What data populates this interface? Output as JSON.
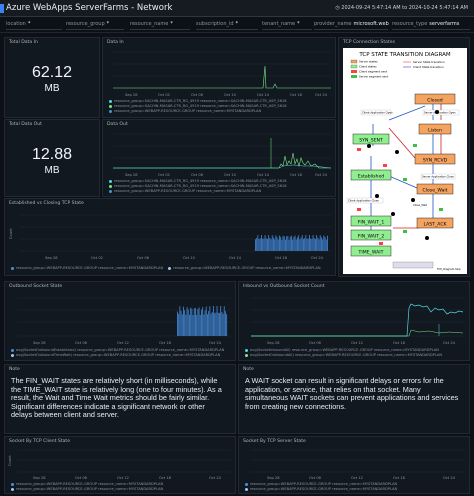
{
  "app": {
    "title": "Azure WebApps ServerFarms - Network",
    "timerange": "2024-09-24 5:47:14 AM to 2024-10-24 5:47:14 AM"
  },
  "filters": [
    {
      "label": "location",
      "value": "*"
    },
    {
      "label": "resource_group",
      "value": "*"
    },
    {
      "label": "resource_name",
      "value": "*"
    },
    {
      "label": "subscription_id",
      "value": "*"
    },
    {
      "label": "tenant_name",
      "value": "*"
    },
    {
      "label": "provider_name",
      "value": "microsoft.web"
    },
    {
      "label": "resource_type",
      "value": "serverfarms"
    }
  ],
  "panels": {
    "total_data_in": {
      "title": "Total Data In",
      "value": "62.12",
      "unit": "MB"
    },
    "data_in": {
      "title": "Data In",
      "legend": [
        "resource_group=SACHIN-MASAR-CTR_RG_4919 resource_name=SACHIN-MASAR-CTR_ASP_5616",
        "resource_group=SACHIN-MASAR-CTR_RG_4919 resource_name=SACHIN-MASAR-CTR_ASP_5616",
        "resource_group=WEBAPP-RESOURCE-GROUP resource_name=MYSTANDARDPLAN"
      ]
    },
    "total_data_out": {
      "title": "Total Data Out",
      "value": "12.88",
      "unit": "MB"
    },
    "data_out": {
      "title": "Data Out",
      "legend": [
        "resource_group=SACHIN-MASAR-CTR_RG_4919 resource_name=SACHIN-MASAR-CTR_ASP_5616",
        "resource_group=SACHIN-MASAR-CTR_RG_4919 resource_name=SACHIN-MASAR-CTR_ASP_5616",
        "resource_group=WEBAPP-RESOURCE-GROUP resource_name=MYSTANDARDPLAN"
      ]
    },
    "tcp_connection_states": {
      "title": "TCP Connection States"
    },
    "established_vs_closing": {
      "title": "Established vs Closing TCP State",
      "ylabel": "Count",
      "legend": [
        "resource_group=WEBAPP-RESOURCE-GROUP resource_name=MYSTANDARDPLAN",
        "resource_group=WEBAPP-RESOURCE-GROUP resource_name=MYSTANDARDPLAN"
      ]
    },
    "outbound_socket_state": {
      "title": "Outbound Socket State",
      "legend": [
        "avg(SocketOutboundEstablished) resource_group=WEBAPP-RESOURCE-GROUP resource_name=MYSTANDARDPLAN",
        "avg(SocketOutboundTimeWait) resource_group=WEBAPP-RESOURCE-GROUP resource_name=MYSTANDARDPLAN"
      ]
    },
    "inbound_vs_outbound": {
      "title": "Inbound vs Outbound Socket Count",
      "legend": [
        "avg(SocketInboundAll) resource_group=WEBAPP-RESOURCE-GROUP resource_name=MYSTANDARDPLAN",
        "avg(SocketOutboundAll) resource_group=WEBAPP-RESOURCE-GROUP resource_name=MYSTANDARDPLAN"
      ]
    },
    "note_left": {
      "title": "Note",
      "text": "The FIN_WAIT states are relatively short (in milliseconds), while the TIME_WAIT state is relatively long (one to four minutes). As a result, the Wait and Time Wait metrics should be fairly similar. Significant differences indicate a significant network or other delays between client and server."
    },
    "note_right": {
      "title": "Note",
      "text": "A WAIT socket can result in significant delays or errors for the application, or service, that relies on that socket. Many simultaneous WAIT sockets can prevent applications and services from creating new connections."
    },
    "socket_by_client": {
      "title": "Socket By TCP Client State",
      "ylabel": "Count",
      "legend": [
        "resource_group=WEBAPP-RESOURCE-GROUP resource_name=MYSTANDARDPLAN",
        "resource_group=WEBAPP-RESOURCE-GROUP resource_name=MYSTANDARDPLAN"
      ]
    },
    "socket_by_server": {
      "title": "Socket By TCP Server State",
      "legend": [
        "resource_group=WEBAPP-RESOURCE-GROUP resource_name=MYSTANDARDPLAN",
        "resource_group=WEBAPP-RESOURCE-GROUP resource_name=MYSTANDARDPLAN"
      ]
    }
  },
  "diagram": {
    "title": "TCP STATE TRANSITION DIAGRAM",
    "legend": [
      "Server states",
      "Client states",
      "Client segment sent",
      "Server segment sent",
      "Server State transition",
      "Client State transition"
    ],
    "states": [
      "Closed",
      "Listen",
      "SYN_SENT",
      "SYN_RCVD",
      "Established",
      "Close_Wait",
      "FIN_WAIT_1",
      "LAST_ACK",
      "FIN_WAIT_2",
      "TIME_WAIT"
    ],
    "labels": [
      "Client Application Open",
      "Server Application Open",
      "Client Application Close",
      "Server Application Close",
      "Close_Wait"
    ],
    "footer": "TCP_Diagram.Slop"
  },
  "x_ticks": {
    "wide": [
      "Sep 28",
      "Oct 02",
      "Oct 06",
      "Oct 10",
      "Oct 14",
      "Oct 18",
      "Oct 24"
    ],
    "narrow": [
      "Sep 28",
      "Oct 06",
      "Oct 12",
      "Oct 18",
      "Oct 24"
    ]
  },
  "colors": {
    "green": "#7ee787",
    "cyan": "#56d4dd",
    "blue": "#4c8fd6",
    "lightblue": "#a5c8f0",
    "grey": "#6e7681"
  }
}
